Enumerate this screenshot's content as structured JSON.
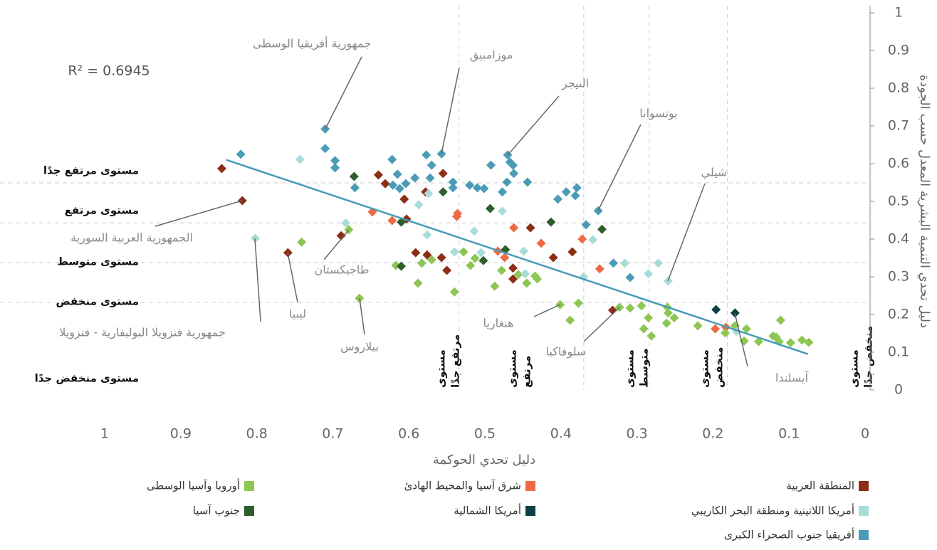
{
  "chart_data": {
    "type": "scatter",
    "xlabel": "دليل تحدي الحوكمة",
    "ylabel": "دليل تحدي التنمية البشرية المعدل حسب الجودة",
    "xlim": [
      1,
      0
    ],
    "ylim": [
      0,
      1
    ],
    "xticks": [
      1,
      0.9,
      0.8,
      0.7,
      0.6,
      0.5,
      0.4,
      0.3,
      0.2,
      0.1,
      0
    ],
    "yticks": [
      0,
      0.1,
      0.2,
      0.3,
      0.4,
      0.5,
      0.6,
      0.7,
      0.8,
      0.9,
      1
    ],
    "r_squared": "R² = 0.6945",
    "trendline": {
      "color": "#4a9bb6",
      "x": [
        0.84,
        0.075
      ],
      "y": [
        0.61,
        0.095
      ]
    },
    "y_levels": [
      {
        "label": "مستوى مرتفع جدًا",
        "value": 0.549
      },
      {
        "label": "مستوى مرتفع",
        "value": 0.443
      },
      {
        "label": "مستوى متوسط",
        "value": 0.338
      },
      {
        "label": "مستوى منخفض",
        "value": 0.232
      },
      {
        "label": "مستوى منخفض جدًا"
      }
    ],
    "x_levels": [
      {
        "label": [
          "مستوى",
          "مرتفع جدًا"
        ],
        "value": 0.534
      },
      {
        "label": [
          "مستوى",
          "مرتفع"
        ],
        "value": 0.37
      },
      {
        "label": [
          "مستوى",
          "متوسط"
        ],
        "value": 0.284
      },
      {
        "label": [
          "مستوى",
          "منخفض"
        ],
        "value": 0.181
      },
      {
        "label": [
          "مستوى",
          "منخفض جدًا"
        ]
      }
    ],
    "annotations": [
      "جمهورية أفريقيا الوسطى",
      "موزامبيق",
      "النيجر",
      "بوتسوانا",
      "شيلي",
      "الجمهورية العربية السورية",
      "طاجيكستان",
      "ليبيا",
      "جمهورية فنزويلا البولبفارية - فنزويلا",
      "بيلاروس",
      "هنغاريا",
      "سلوفاكيا",
      "آيسلندا"
    ],
    "series": [
      {
        "name": "المنطقة العربية",
        "color": "#8b2e16",
        "x": [
          0.846,
          0.819,
          0.759,
          0.689,
          0.64,
          0.631,
          0.606,
          0.603,
          0.591,
          0.578,
          0.576,
          0.557,
          0.555,
          0.55,
          0.463,
          0.463,
          0.44,
          0.41,
          0.385,
          0.332
        ],
        "y": [
          0.587,
          0.502,
          0.364,
          0.409,
          0.57,
          0.547,
          0.506,
          0.453,
          0.364,
          0.525,
          0.358,
          0.351,
          0.574,
          0.317,
          0.294,
          0.323,
          0.43,
          0.351,
          0.366,
          0.211
        ]
      },
      {
        "name": "شرق آسيا والمحيط الهادئ",
        "color": "#ee6a45",
        "x": [
          0.648,
          0.622,
          0.536,
          0.537,
          0.483,
          0.474,
          0.462,
          0.426,
          0.372,
          0.349,
          0.183,
          0.197
        ],
        "y": [
          0.472,
          0.449,
          0.468,
          0.46,
          0.368,
          0.351,
          0.43,
          0.389,
          0.4,
          0.321,
          0.166,
          0.162
        ]
      },
      {
        "name": "أوروبا وآسيا الوسطى",
        "color": "#8dc653",
        "x": [
          0.741,
          0.679,
          0.665,
          0.617,
          0.588,
          0.583,
          0.57,
          0.54,
          0.528,
          0.519,
          0.513,
          0.487,
          0.478,
          0.456,
          0.445,
          0.434,
          0.431,
          0.401,
          0.388,
          0.377,
          0.323,
          0.309,
          0.294,
          0.291,
          0.285,
          0.281,
          0.26,
          0.259,
          0.261,
          0.251,
          0.22,
          0.184,
          0.171,
          0.156,
          0.159,
          0.14,
          0.121,
          0.113,
          0.111,
          0.098,
          0.083,
          0.074,
          0.117
        ],
        "y": [
          0.392,
          0.425,
          0.243,
          0.33,
          0.283,
          0.336,
          0.345,
          0.26,
          0.366,
          0.33,
          0.349,
          0.275,
          0.317,
          0.306,
          0.283,
          0.302,
          0.294,
          0.226,
          0.185,
          0.23,
          0.219,
          0.217,
          0.223,
          0.162,
          0.191,
          0.143,
          0.219,
          0.204,
          0.177,
          0.191,
          0.17,
          0.151,
          0.17,
          0.162,
          0.13,
          0.128,
          0.143,
          0.128,
          0.185,
          0.125,
          0.132,
          0.126,
          0.14
        ]
      },
      {
        "name": "أمريكا اللاتينية ومنطقة البحر الكاريبي",
        "color": "#a8dcd9",
        "x": [
          0.802,
          0.743,
          0.683,
          0.587,
          0.574,
          0.576,
          0.54,
          0.505,
          0.514,
          0.477,
          0.449,
          0.447,
          0.37,
          0.358,
          0.316,
          0.285,
          0.272,
          0.259,
          0.169
        ],
        "y": [
          0.402,
          0.611,
          0.443,
          0.491,
          0.521,
          0.411,
          0.366,
          0.364,
          0.421,
          0.474,
          0.368,
          0.308,
          0.3,
          0.398,
          0.336,
          0.308,
          0.336,
          0.289,
          0.155
        ]
      },
      {
        "name": "أمريكا الشمالية",
        "color": "#0d3f45",
        "x": [
          0.196,
          0.171
        ],
        "y": [
          0.213,
          0.204
        ]
      },
      {
        "name": "جنوب آسيا",
        "color": "#2e5e2a",
        "x": [
          0.672,
          0.61,
          0.61,
          0.555,
          0.493,
          0.473,
          0.413,
          0.346,
          0.502
        ],
        "y": [
          0.566,
          0.445,
          0.328,
          0.525,
          0.481,
          0.372,
          0.445,
          0.426,
          0.343
        ]
      },
      {
        "name": "أفريقيا جنوب الصحراء الكبرى",
        "color": "#4a9bb6",
        "x": [
          0.821,
          0.71,
          0.71,
          0.697,
          0.697,
          0.671,
          0.622,
          0.615,
          0.621,
          0.612,
          0.604,
          0.592,
          0.577,
          0.572,
          0.557,
          0.57,
          0.542,
          0.542,
          0.52,
          0.51,
          0.501,
          0.492,
          0.47,
          0.471,
          0.467,
          0.463,
          0.462,
          0.444,
          0.477,
          0.404,
          0.393,
          0.379,
          0.381,
          0.351,
          0.367,
          0.331,
          0.309
        ],
        "y": [
          0.625,
          0.692,
          0.64,
          0.608,
          0.589,
          0.536,
          0.611,
          0.572,
          0.543,
          0.534,
          0.547,
          0.562,
          0.623,
          0.562,
          0.626,
          0.596,
          0.551,
          0.536,
          0.543,
          0.536,
          0.534,
          0.596,
          0.623,
          0.551,
          0.604,
          0.596,
          0.574,
          0.551,
          0.525,
          0.506,
          0.525,
          0.536,
          0.515,
          0.475,
          0.438,
          0.336,
          0.298
        ]
      }
    ]
  }
}
